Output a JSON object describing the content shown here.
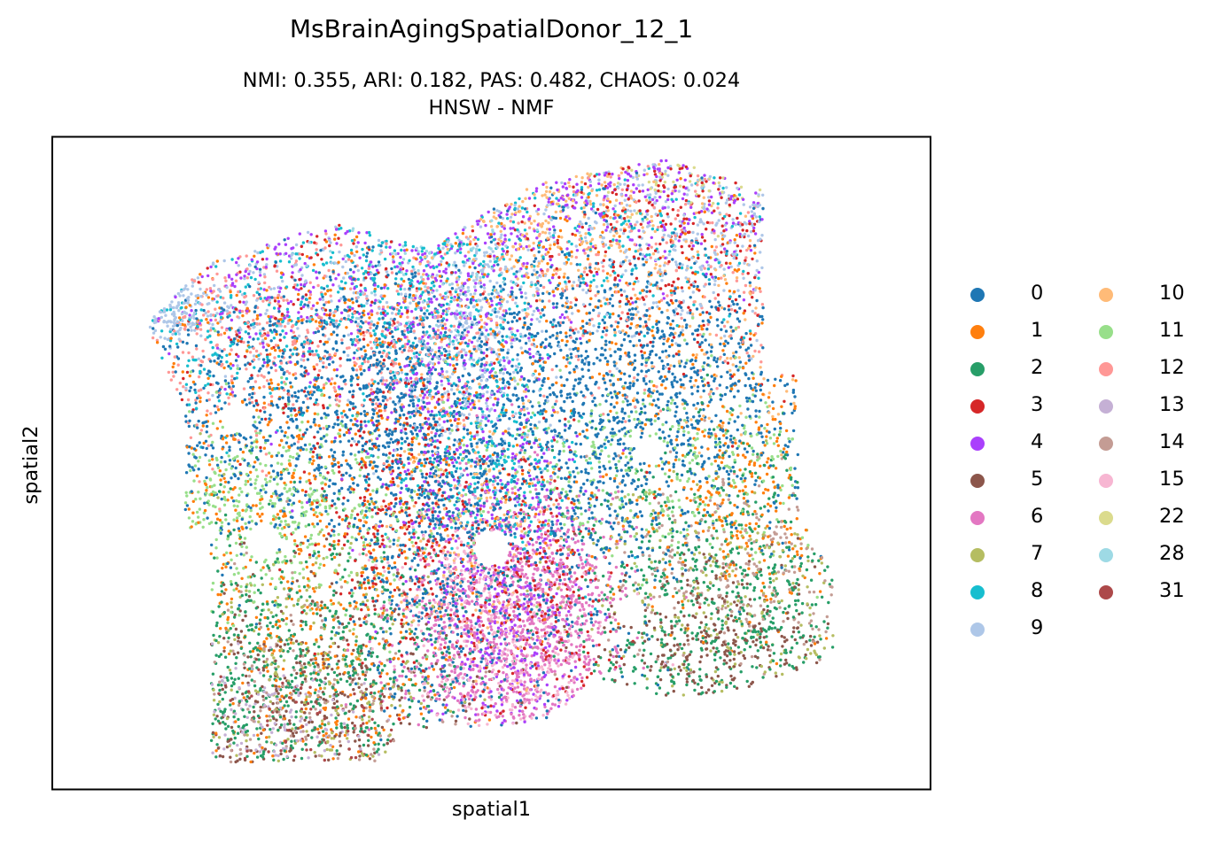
{
  "chart_data": {
    "type": "scatter",
    "title": "MsBrainAgingSpatialDonor_12_1",
    "subtitle_lines": [
      "NMI: 0.355,  ARI: 0.182,  PAS: 0.482,  CHAOS: 0.024",
      "HNSW - NMF"
    ],
    "xlabel": "spatial1",
    "ylabel": "spatial2",
    "xticks": [],
    "yticks": [],
    "grid": false,
    "legend_position": "right",
    "series": [
      {
        "name": "0",
        "color": "#1f77b4",
        "regions": [
          [
            0.35,
            0.4,
            0.08,
            0.1,
            0.9
          ],
          [
            0.58,
            0.5,
            0.07,
            0.22,
            1.0
          ],
          [
            0.44,
            0.62,
            0.05,
            0.18,
            0.8
          ],
          [
            0.67,
            0.4,
            0.12,
            0.1,
            0.8
          ],
          [
            0.2,
            0.45,
            0.1,
            0.12,
            0.5
          ],
          [
            0.77,
            0.38,
            0.12,
            0.12,
            0.6
          ]
        ]
      },
      {
        "name": "1",
        "color": "#ff7f0e",
        "regions": [
          [
            0.25,
            0.4,
            0.17,
            0.15,
            0.6
          ],
          [
            0.3,
            0.75,
            0.1,
            0.18,
            0.6
          ],
          [
            0.8,
            0.55,
            0.1,
            0.1,
            0.5
          ],
          [
            0.6,
            0.25,
            0.2,
            0.1,
            0.4
          ]
        ]
      },
      {
        "name": "2",
        "color": "#279e68",
        "regions": [
          [
            0.28,
            0.82,
            0.1,
            0.12,
            1.0
          ],
          [
            0.77,
            0.72,
            0.09,
            0.13,
            1.0
          ]
        ]
      },
      {
        "name": "3",
        "color": "#d62728",
        "regions": [
          [
            0.72,
            0.14,
            0.12,
            0.12,
            0.5
          ],
          [
            0.4,
            0.58,
            0.05,
            0.12,
            0.4
          ],
          [
            0.55,
            0.7,
            0.05,
            0.1,
            0.3
          ],
          [
            0.3,
            0.3,
            0.08,
            0.1,
            0.2
          ]
        ]
      },
      {
        "name": "4",
        "color": "#aa40fc",
        "regions": [
          [
            0.45,
            0.3,
            0.06,
            0.18,
            0.7
          ],
          [
            0.52,
            0.72,
            0.04,
            0.15,
            0.5
          ],
          [
            0.65,
            0.1,
            0.15,
            0.06,
            0.5
          ],
          [
            0.25,
            0.22,
            0.08,
            0.08,
            0.3
          ]
        ]
      },
      {
        "name": "5",
        "color": "#8c564b",
        "regions": [
          [
            0.28,
            0.86,
            0.1,
            0.1,
            0.5
          ],
          [
            0.75,
            0.78,
            0.07,
            0.07,
            0.4
          ]
        ]
      },
      {
        "name": "6",
        "color": "#e377c2",
        "regions": [
          [
            0.48,
            0.76,
            0.05,
            0.1,
            0.7
          ],
          [
            0.57,
            0.72,
            0.04,
            0.1,
            0.7
          ]
        ]
      },
      {
        "name": "7",
        "color": "#b5bd61",
        "regions": [
          [
            0.28,
            0.82,
            0.1,
            0.12,
            0.4
          ],
          [
            0.77,
            0.7,
            0.08,
            0.1,
            0.3
          ]
        ]
      },
      {
        "name": "8",
        "color": "#17becf",
        "regions": [
          [
            0.4,
            0.22,
            0.08,
            0.1,
            0.5
          ],
          [
            0.5,
            0.5,
            0.05,
            0.08,
            0.3
          ],
          [
            0.65,
            0.15,
            0.15,
            0.08,
            0.3
          ],
          [
            0.2,
            0.3,
            0.06,
            0.08,
            0.2
          ]
        ]
      },
      {
        "name": "9",
        "color": "#aec7e8",
        "regions": [
          [
            0.74,
            0.12,
            0.1,
            0.08,
            0.6
          ],
          [
            0.13,
            0.26,
            0.03,
            0.03,
            0.3
          ],
          [
            0.48,
            0.3,
            0.05,
            0.1,
            0.5
          ],
          [
            0.28,
            0.22,
            0.1,
            0.08,
            0.3
          ]
        ]
      },
      {
        "name": "10",
        "color": "#ffbb78",
        "regions": [
          [
            0.56,
            0.12,
            0.08,
            0.08,
            0.4
          ],
          [
            0.48,
            0.55,
            0.05,
            0.12,
            0.3
          ],
          [
            0.8,
            0.3,
            0.08,
            0.1,
            0.2
          ]
        ]
      },
      {
        "name": "11",
        "color": "#98df8a",
        "regions": [
          [
            0.25,
            0.57,
            0.1,
            0.08,
            0.7
          ],
          [
            0.7,
            0.5,
            0.12,
            0.08,
            0.5
          ]
        ]
      },
      {
        "name": "12",
        "color": "#ff9896",
        "regions": [
          [
            0.22,
            0.3,
            0.1,
            0.1,
            0.5
          ],
          [
            0.7,
            0.2,
            0.14,
            0.12,
            0.4
          ],
          [
            0.4,
            0.32,
            0.06,
            0.06,
            0.2
          ]
        ]
      },
      {
        "name": "13",
        "color": "#c5b0d5",
        "regions": [
          [
            0.25,
            0.9,
            0.06,
            0.05,
            0.2
          ]
        ]
      },
      {
        "name": "14",
        "color": "#c49c94",
        "regions": [
          [
            0.28,
            0.86,
            0.1,
            0.1,
            0.3
          ],
          [
            0.78,
            0.66,
            0.08,
            0.08,
            0.3
          ]
        ]
      },
      {
        "name": "15",
        "color": "#f7b6d2",
        "regions": [
          [
            0.52,
            0.82,
            0.05,
            0.06,
            0.3
          ],
          [
            0.47,
            0.68,
            0.04,
            0.05,
            0.2
          ]
        ]
      },
      {
        "name": "22",
        "color": "#dbdb8d",
        "regions": [
          [
            0.75,
            0.06,
            0.05,
            0.03,
            0.1
          ]
        ]
      },
      {
        "name": "28",
        "color": "#9edae5",
        "regions": [
          [
            0.44,
            0.2,
            0.05,
            0.05,
            0.1
          ]
        ]
      },
      {
        "name": "31",
        "color": "#ad494a",
        "regions": [
          [
            0.3,
            0.9,
            0.06,
            0.04,
            0.1
          ]
        ]
      }
    ]
  }
}
